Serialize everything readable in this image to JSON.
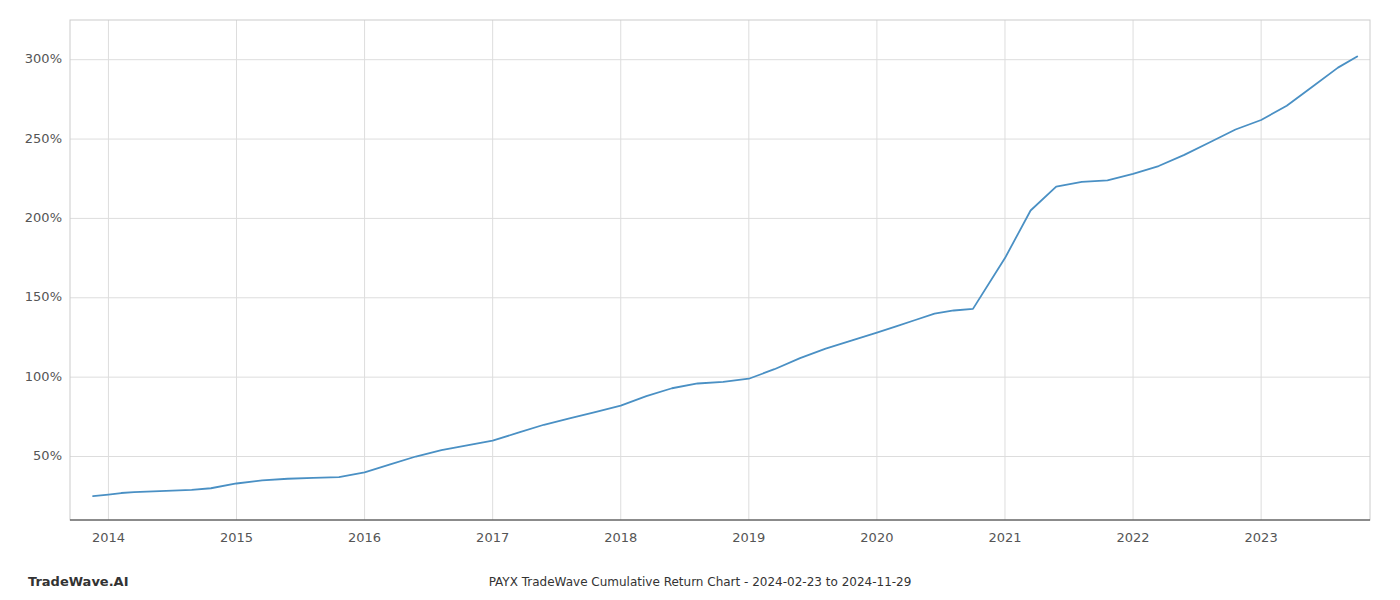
{
  "chart_data": {
    "type": "line",
    "title": "PAYX TradeWave Cumulative Return Chart - 2024-02-23 to 2024-11-29",
    "annotations": [
      "TradeWave.AI"
    ],
    "color": "#4a90c4",
    "grid": true,
    "x": [
      2013.88,
      2014.0,
      2014.1,
      2014.2,
      2014.35,
      2014.5,
      2014.65,
      2014.8,
      2015.0,
      2015.2,
      2015.4,
      2015.6,
      2015.8,
      2016.0,
      2016.2,
      2016.4,
      2016.6,
      2016.8,
      2017.0,
      2017.2,
      2017.4,
      2017.6,
      2017.8,
      2018.0,
      2018.2,
      2018.4,
      2018.6,
      2018.8,
      2019.0,
      2019.2,
      2019.4,
      2019.6,
      2019.8,
      2020.0,
      2020.15,
      2020.3,
      2020.45,
      2020.6,
      2020.75,
      2021.0,
      2021.2,
      2021.4,
      2021.6,
      2021.8,
      2022.0,
      2022.2,
      2022.4,
      2022.6,
      2022.8,
      2023.0,
      2023.2,
      2023.4,
      2023.6,
      2023.75
    ],
    "values": [
      25,
      26,
      27,
      27.5,
      28,
      28.5,
      29,
      30,
      33,
      35,
      36,
      36.5,
      37,
      40,
      45,
      50,
      54,
      57,
      60,
      65,
      70,
      74,
      78,
      82,
      88,
      93,
      96,
      97,
      99,
      105,
      112,
      118,
      123,
      128,
      132,
      136,
      140,
      142,
      143,
      175,
      205,
      220,
      223,
      224,
      228,
      233,
      240,
      248,
      256,
      262,
      271,
      283,
      295,
      302
    ],
    "xlim": [
      2013.7,
      2023.85
    ],
    "ylim": [
      10,
      325
    ],
    "xticks": [
      2014,
      2015,
      2016,
      2017,
      2018,
      2019,
      2020,
      2021,
      2022,
      2023
    ],
    "yticks": [
      {
        "value": 50,
        "label": "50%"
      },
      {
        "value": 100,
        "label": "100%"
      },
      {
        "value": 150,
        "label": "150%"
      },
      {
        "value": 200,
        "label": "200%"
      },
      {
        "value": 250,
        "label": "250%"
      },
      {
        "value": 300,
        "label": "300%"
      }
    ]
  }
}
